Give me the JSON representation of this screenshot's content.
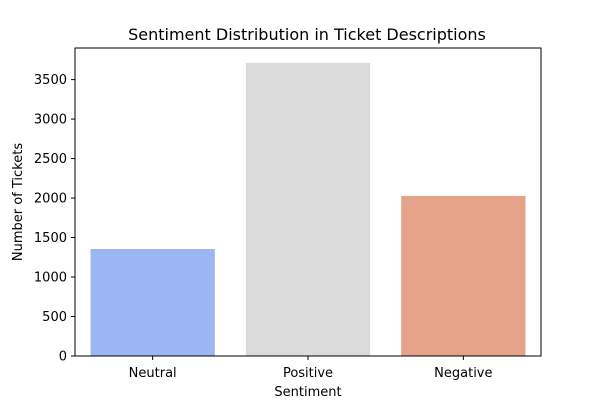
{
  "chart_data": {
    "type": "bar",
    "title": "Sentiment Distribution in Ticket Descriptions",
    "xlabel": "Sentiment",
    "ylabel": "Number of Tickets",
    "categories": [
      "Neutral",
      "Positive",
      "Negative"
    ],
    "values": [
      1355,
      3712,
      2027
    ],
    "colors": [
      "#9bb6f2",
      "#dcdcdc",
      "#e5a48a"
    ],
    "ylim": [
      0,
      3900
    ],
    "yticks": [
      0,
      500,
      1000,
      1500,
      2000,
      2500,
      3000,
      3500
    ],
    "grid": false,
    "legend": "none"
  }
}
